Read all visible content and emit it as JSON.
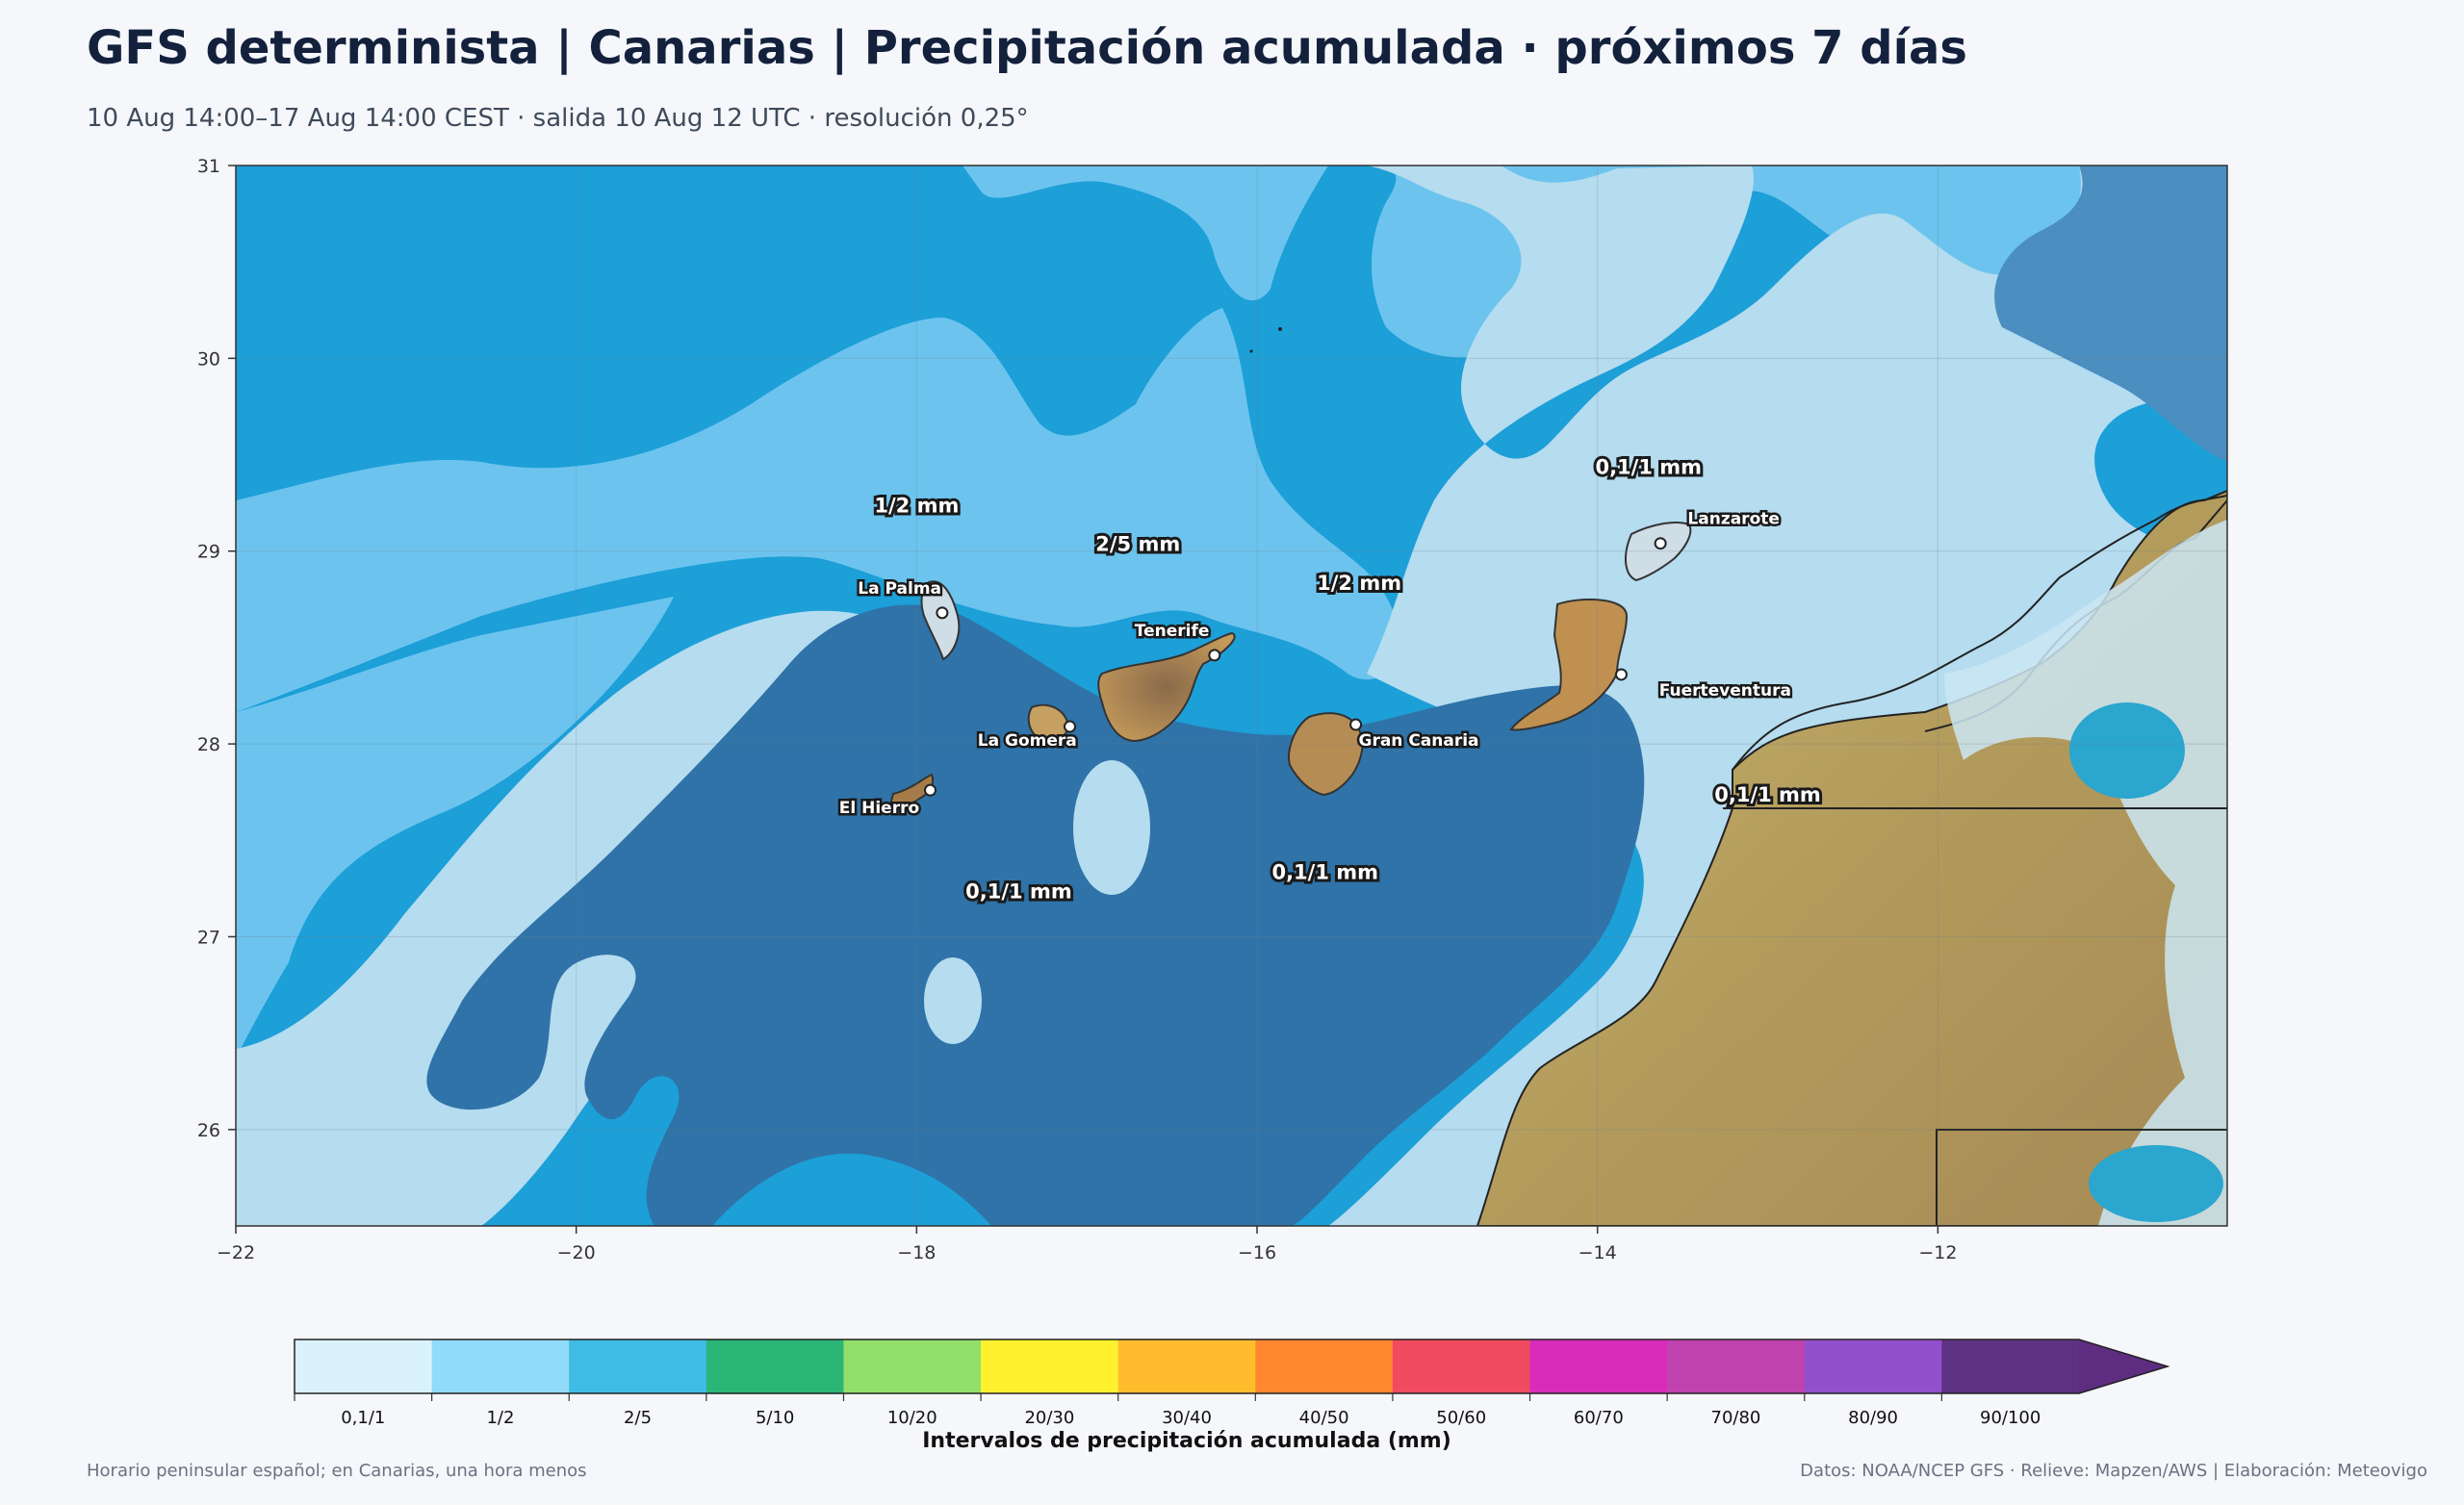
{
  "header": {
    "title": "GFS determinista | Canarias | Precipitación acumulada · próximos 7 días",
    "subtitle": "10 Aug 14:00–17 Aug 14:00 CEST · salida 10 Aug 12 UTC · resolución 0,25°"
  },
  "map": {
    "lon_range": [
      -22,
      -10.3
    ],
    "lat_range": [
      25.5,
      31
    ],
    "x_ticks": [
      {
        "value": -22,
        "label": "−22"
      },
      {
        "value": -20,
        "label": "−20"
      },
      {
        "value": -18,
        "label": "−18"
      },
      {
        "value": -16,
        "label": "−16"
      },
      {
        "value": -14,
        "label": "−14"
      },
      {
        "value": -12,
        "label": "−12"
      }
    ],
    "y_ticks": [
      {
        "value": 31,
        "label": "31"
      },
      {
        "value": 30,
        "label": "30"
      },
      {
        "value": 29,
        "label": "29"
      },
      {
        "value": 28,
        "label": "28"
      },
      {
        "value": 27,
        "label": "27"
      },
      {
        "value": 26,
        "label": "26"
      }
    ],
    "area_labels": [
      {
        "text": "1/2 mm",
        "lon": -18.0,
        "lat": 29.2
      },
      {
        "text": "2/5 mm",
        "lon": -16.7,
        "lat": 29.0
      },
      {
        "text": "1/2 mm",
        "lon": -15.4,
        "lat": 28.8
      },
      {
        "text": "0,1/1 mm",
        "lon": -13.7,
        "lat": 29.4
      },
      {
        "text": "0,1/1 mm",
        "lon": -13.0,
        "lat": 27.7
      },
      {
        "text": "0,1/1 mm",
        "lon": -17.4,
        "lat": 27.2
      },
      {
        "text": "0,1/1 mm",
        "lon": -15.6,
        "lat": 27.3
      }
    ],
    "places": [
      {
        "name": "La Palma",
        "lon": -17.85,
        "lat": 28.68,
        "label_lon": -18.1,
        "label_lat": 28.78,
        "anchor": "middle"
      },
      {
        "name": "Tenerife",
        "lon": -16.25,
        "lat": 28.46,
        "label_lon": -16.5,
        "label_lat": 28.56,
        "anchor": "middle"
      },
      {
        "name": "La Gomera",
        "lon": -17.1,
        "lat": 28.09,
        "label_lon": -17.35,
        "label_lat": 27.99,
        "anchor": "middle"
      },
      {
        "name": "El Hierro",
        "lon": -17.92,
        "lat": 27.76,
        "label_lon": -18.22,
        "label_lat": 27.64,
        "anchor": "middle"
      },
      {
        "name": "Gran Canaria",
        "lon": -15.42,
        "lat": 28.1,
        "label_lon": -15.05,
        "label_lat": 27.99,
        "anchor": "middle"
      },
      {
        "name": "Fuerteventura",
        "lon": -13.86,
        "lat": 28.36,
        "label_lon": -13.25,
        "label_lat": 28.25,
        "anchor": "middle"
      },
      {
        "name": "Lanzarote",
        "lon": -13.63,
        "lat": 29.04,
        "label_lon": -13.2,
        "label_lat": 29.14,
        "anchor": "middle"
      }
    ]
  },
  "colorbar": {
    "title": "Intervalos de precipitación acumulada (mm)",
    "bins": [
      {
        "label": "0,1/1",
        "color": "#d9f2fc"
      },
      {
        "label": "1/2",
        "color": "#91dbfa"
      },
      {
        "label": "2/5",
        "color": "#3fbce6"
      },
      {
        "label": "5/10",
        "color": "#2bb677"
      },
      {
        "label": "10/20",
        "color": "#92e06a"
      },
      {
        "label": "20/30",
        "color": "#fff12e"
      },
      {
        "label": "30/40",
        "color": "#ffbd2e"
      },
      {
        "label": "40/50",
        "color": "#ff8730"
      },
      {
        "label": "50/60",
        "color": "#f04b5e"
      },
      {
        "label": "60/70",
        "color": "#d92cba"
      },
      {
        "label": "70/80",
        "color": "#c042ae"
      },
      {
        "label": "80/90",
        "color": "#9150cc"
      },
      {
        "label": "90/100",
        "color": "#5e3282"
      }
    ],
    "extend_color": "#5e2d82"
  },
  "footer": {
    "left": "Horario peninsular español; en Canarias, una hora menos",
    "right": "Datos: NOAA/NCEP GFS · Relieve: Mapzen/AWS | Elaboración: Meteovigo"
  }
}
